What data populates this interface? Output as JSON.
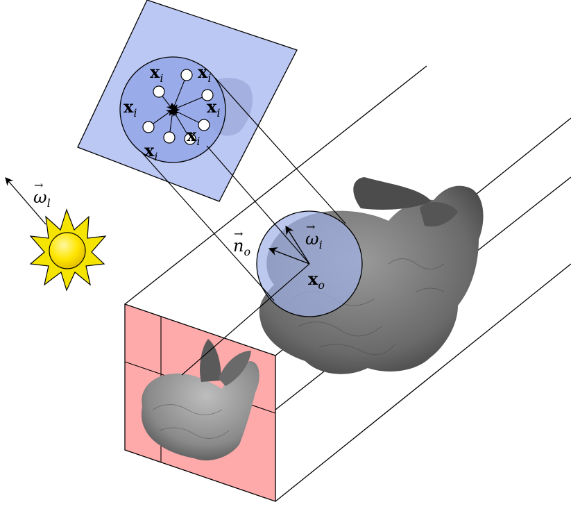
{
  "labels": {
    "xi_top": "xi",
    "omega_l": "ω⃗l",
    "n_o": "n⃗o",
    "omega_i": "ω⃗i",
    "x_o": "xo",
    "xi_symbol": "x",
    "xi_sub": "i",
    "xo_symbol": "x",
    "xo_sub": "o",
    "omega_symbol": "ω",
    "omega_l_sub": "l",
    "omega_i_sub": "i",
    "n_symbol": "n",
    "n_sub": "o"
  },
  "colors": {
    "projection_plane": "#bcc8f4",
    "sphere": "#9fb0e6",
    "near_plane": "#ffaaaa",
    "sun_rays": "#f5e400",
    "sun_core": "#ffe600",
    "bunny": "#6a6a6a"
  },
  "icons": {
    "light_source": "sun-icon",
    "model": "bunny-shape"
  },
  "sample_points": {
    "count": 8
  }
}
